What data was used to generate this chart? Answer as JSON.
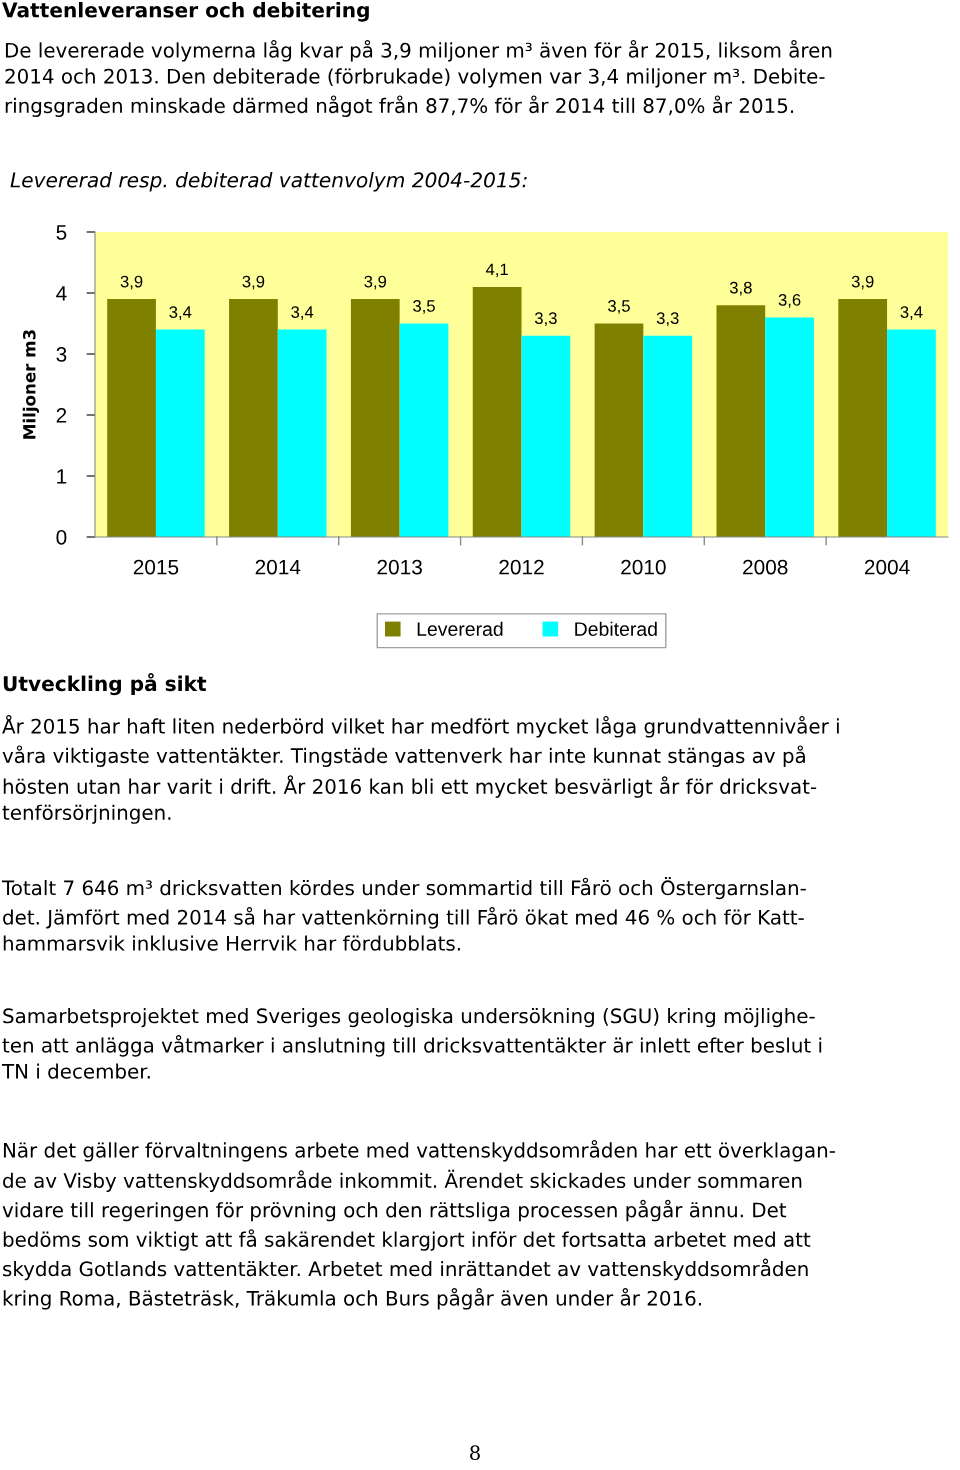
{
  "chart_data": {
    "type": "bar",
    "title": "Levererad resp. debiterad vattenvolym 2004-2015:",
    "ylabel": "Miljoner m3",
    "categories": [
      "2015",
      "2014",
      "2013",
      "2012",
      "2010",
      "2008",
      "2004"
    ],
    "series": [
      {
        "name": "Levererad",
        "color": "#808000",
        "values": [
          3.9,
          3.9,
          3.9,
          4.1,
          3.5,
          3.8,
          3.9
        ],
        "value_labels": [
          "3,9",
          "3,9",
          "3,9",
          "4,1",
          "3,5",
          "3,8",
          "3,9"
        ]
      },
      {
        "name": "Debiterad",
        "color": "#00ffff",
        "values": [
          3.4,
          3.4,
          3.5,
          3.3,
          3.3,
          3.6,
          3.4
        ],
        "value_labels": [
          "3,4",
          "3,4",
          "3,5",
          "3,3",
          "3,3",
          "3,6",
          "3,4"
        ]
      }
    ],
    "ylim": [
      0,
      5
    ],
    "yticks": [
      0,
      1,
      2,
      3,
      4,
      5
    ],
    "legend": "bottom",
    "grid": false,
    "annotations": [
      "Vattenleveranser och debitering",
      "De levererade volymerna låg kvar på 3,9 miljoner m³ även för år 2015, liksom åren\n2014 och 2013. Den debiterade (förbrukade) volymen var 3,4 miljoner m³. Debite-\nringsgraden minskade därmed något från 87,7% för år 2014 till 87,0% år 2015.",
      "Utveckling på sikt",
      "År 2015 har haft liten nederbörd vilket har medfört mycket låga grundvattennivåer i\nvåra viktigaste vattentäkter. Tingstäde vattenverk har inte kunnat stängas av på\nhösten utan har varit i drift. År 2016 kan bli ett mycket besvärligt år för dricksvat-\ntenförsörjningen.",
      "Totalt 7 646 m³ dricksvatten kördes under sommartid till Fårö och Östergarnslan-\ndet. Jämfört med 2014 så har vattenkörning till Fårö ökat med 46 % och för Katt-\nhammarsvik inklusive Herrvik har fördubblats.",
      "Samarbetsprojektet med Sveriges geologiska undersökning (SGU) kring möjlighe-\nten att anlägga våtmarker i anslutning till dricksvattentäkter är inlett efter beslut i\nTN i december.",
      "När det gäller förvaltningens arbete med vattenskyddsområden har ett överklagan-\nde av Visby vattenskyddsområde inkommit. Ärendet skickades under sommaren\nvidare till regeringen för prövning och den rättsliga processen pågår ännu. Det\nbedöms som viktigt att få sakärendet klargjort inför det fortsatta arbetet med att\nskydda Gotlands vattentäkter. Arbetet med inrättandet av vattenskyddsområden\nkring Roma, Bästeträsk, Träkumla och Burs pågår även under år 2016.",
      "8"
    ]
  }
}
